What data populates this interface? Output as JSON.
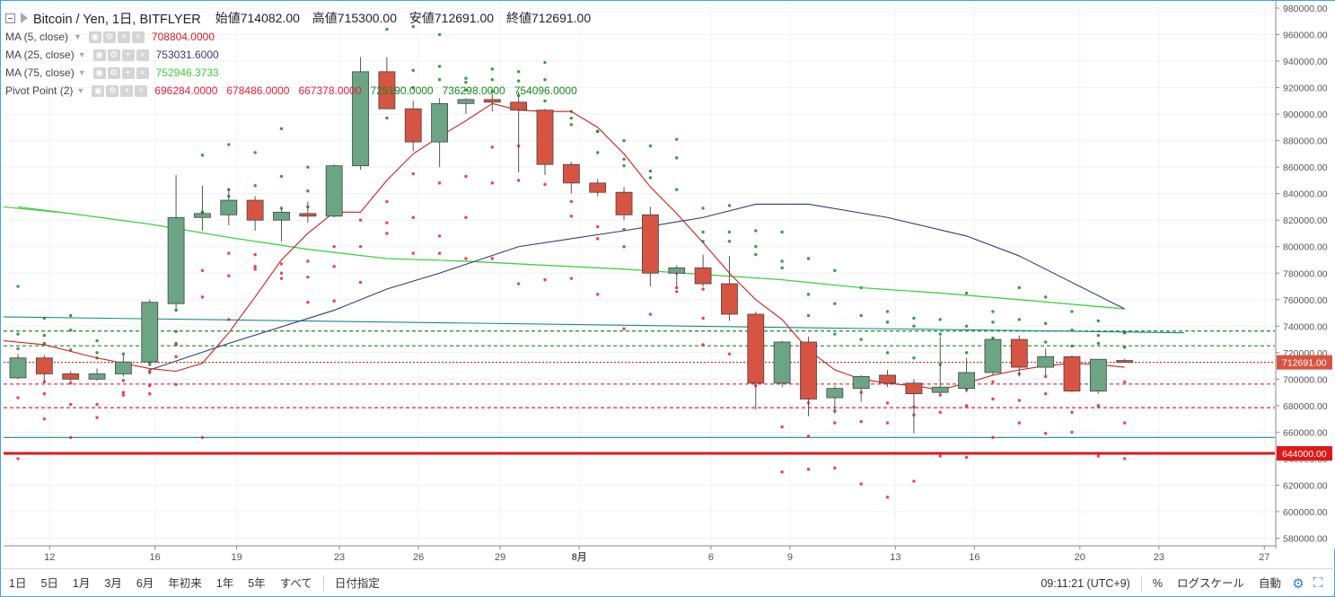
{
  "legend": {
    "symbol": "Bitcoin / Yen, 1日, BITFLYER",
    "open": "始値714082.00",
    "high": "高値715300.00",
    "low": "安値712691.00",
    "close": "終値712691.00",
    "indicators": [
      {
        "name": "MA (5, close)",
        "values": [
          "708804.0000"
        ],
        "colors": [
          "#cc1f1f"
        ]
      },
      {
        "name": "MA (25, close)",
        "values": [
          "753031.6000"
        ],
        "colors": [
          "#333a7a"
        ]
      },
      {
        "name": "MA (75, close)",
        "values": [
          "752946.3733"
        ],
        "colors": [
          "#36d03a"
        ]
      },
      {
        "name": "Pivot Point (2)",
        "values": [
          "696284.0000",
          "678486.0000",
          "667378.0000",
          "725190.0000",
          "736298.0000",
          "754096.0000"
        ],
        "colors": [
          "#e0213f",
          "#e0213f",
          "#e0213f",
          "#138c1c",
          "#138c1c",
          "#138c1c"
        ]
      }
    ]
  },
  "price_axis": {
    "ticks": [
      "980000.00",
      "960000.00",
      "940000.00",
      "920000.00",
      "900000.00",
      "880000.00",
      "860000.00",
      "840000.00",
      "820000.00",
      "800000.00",
      "780000.00",
      "760000.00",
      "740000.00",
      "720000.00",
      "700000.00",
      "680000.00",
      "660000.00",
      "640000.00",
      "620000.00",
      "600000.00",
      "580000.00"
    ],
    "last_price_label": "712691.00",
    "line_label": "644000.00"
  },
  "time_axis": {
    "labels": [
      "12",
      "16",
      "19",
      "23",
      "26",
      "29",
      "8月",
      "6",
      "9",
      "13",
      "16",
      "20",
      "23",
      "27"
    ]
  },
  "toolbar": {
    "ranges": [
      "1日",
      "5日",
      "1月",
      "3月",
      "6月",
      "年初来",
      "1年",
      "5年",
      "すべて"
    ],
    "date_button": "日付指定",
    "clock": "09:11:21 (UTC+9)",
    "percent": "%",
    "log_scale": "ログスケール",
    "auto": "自動"
  },
  "colors": {
    "up": "#6ba583",
    "down": "#d75442",
    "ma5": "#cc1f1f",
    "ma25": "#333a7a",
    "ma75": "#36d03a",
    "pivot_support": "#e0213f",
    "pivot_resist": "#138c1c",
    "trend": "#168a8a",
    "accent": "#3ba7e6"
  },
  "chart_data": {
    "type": "candlestick",
    "candles": [
      {
        "o": 701000,
        "h": 719000,
        "l": 700000,
        "c": 716000
      },
      {
        "o": 716000,
        "h": 718000,
        "l": 698000,
        "c": 704000
      },
      {
        "o": 704000,
        "h": 706000,
        "l": 698000,
        "c": 700000
      },
      {
        "o": 700000,
        "h": 708000,
        "l": 699000,
        "c": 704000
      },
      {
        "o": 704000,
        "h": 718000,
        "l": 702000,
        "c": 713000
      },
      {
        "o": 713000,
        "h": 760000,
        "l": 712000,
        "c": 758000
      },
      {
        "o": 757000,
        "h": 854000,
        "l": 752000,
        "c": 822000
      },
      {
        "o": 822000,
        "h": 846000,
        "l": 812000,
        "c": 825000
      },
      {
        "o": 824000,
        "h": 844000,
        "l": 816000,
        "c": 835000
      },
      {
        "o": 835000,
        "h": 838000,
        "l": 812000,
        "c": 820000
      },
      {
        "o": 820000,
        "h": 828000,
        "l": 804000,
        "c": 826000
      },
      {
        "o": 825000,
        "h": 834000,
        "l": 818000,
        "c": 823000
      },
      {
        "o": 823000,
        "h": 862000,
        "l": 822000,
        "c": 861000
      },
      {
        "o": 861000,
        "h": 943000,
        "l": 858000,
        "c": 932000
      },
      {
        "o": 932000,
        "h": 943000,
        "l": 904000,
        "c": 904000
      },
      {
        "o": 904000,
        "h": 910000,
        "l": 872000,
        "c": 879000
      },
      {
        "o": 879000,
        "h": 912000,
        "l": 860000,
        "c": 908000
      },
      {
        "o": 908000,
        "h": 912000,
        "l": 900000,
        "c": 911000
      },
      {
        "o": 911000,
        "h": 915000,
        "l": 902000,
        "c": 909000
      },
      {
        "o": 909000,
        "h": 917000,
        "l": 856000,
        "c": 903000
      },
      {
        "o": 903000,
        "h": 904000,
        "l": 854000,
        "c": 862000
      },
      {
        "o": 862000,
        "h": 864000,
        "l": 840000,
        "c": 848000
      },
      {
        "o": 848000,
        "h": 851000,
        "l": 838000,
        "c": 841000
      },
      {
        "o": 841000,
        "h": 845000,
        "l": 820000,
        "c": 824000
      },
      {
        "o": 824000,
        "h": 830000,
        "l": 770000,
        "c": 780000
      },
      {
        "o": 780000,
        "h": 786000,
        "l": 770000,
        "c": 784000
      },
      {
        "o": 784000,
        "h": 794000,
        "l": 770000,
        "c": 772000
      },
      {
        "o": 772000,
        "h": 793000,
        "l": 744000,
        "c": 749000
      },
      {
        "o": 749000,
        "h": 751000,
        "l": 677000,
        "c": 697000
      },
      {
        "o": 697000,
        "h": 729000,
        "l": 694000,
        "c": 728000
      },
      {
        "o": 728000,
        "h": 732000,
        "l": 672000,
        "c": 685000
      },
      {
        "o": 686000,
        "h": 695000,
        "l": 674000,
        "c": 693000
      },
      {
        "o": 693000,
        "h": 703000,
        "l": 683000,
        "c": 702000
      },
      {
        "o": 703000,
        "h": 707000,
        "l": 694000,
        "c": 697000
      },
      {
        "o": 697000,
        "h": 700000,
        "l": 659000,
        "c": 689000
      },
      {
        "o": 690000,
        "h": 732000,
        "l": 689000,
        "c": 694000
      },
      {
        "o": 693000,
        "h": 716000,
        "l": 690000,
        "c": 705000
      },
      {
        "o": 705000,
        "h": 731000,
        "l": 703000,
        "c": 730000
      },
      {
        "o": 730000,
        "h": 733000,
        "l": 702000,
        "c": 709000
      },
      {
        "o": 709000,
        "h": 723000,
        "l": 703000,
        "c": 717000
      },
      {
        "o": 717000,
        "h": 718000,
        "l": 690000,
        "c": 691000
      },
      {
        "o": 691000,
        "h": 715000,
        "l": 689000,
        "c": 715000
      },
      {
        "o": 714082,
        "h": 715300,
        "l": 712691,
        "c": 712691
      }
    ],
    "ma5": [
      729000,
      726000,
      721000,
      716000,
      712000,
      708000,
      706000,
      712000,
      735000,
      762000,
      790000,
      810000,
      826000,
      826000,
      850000,
      870000,
      883000,
      895000,
      908000,
      903000,
      902000,
      902000,
      890000,
      870000,
      845000,
      825000,
      803000,
      780000,
      760000,
      745000,
      722000,
      707000,
      700000,
      697000,
      695000,
      692000,
      697000,
      703000,
      707000,
      710000,
      712000,
      711000,
      709000
    ],
    "ma25_points": [
      [
        5,
        707000
      ],
      [
        8,
        727000
      ],
      [
        12,
        752000
      ],
      [
        14,
        768000
      ],
      [
        16,
        780000
      ],
      [
        19,
        800000
      ],
      [
        23,
        812000
      ],
      [
        26,
        822000
      ],
      [
        28,
        832000
      ],
      [
        30,
        832000
      ],
      [
        33,
        822000
      ],
      [
        36,
        808000
      ],
      [
        38,
        793000
      ],
      [
        42,
        753000
      ]
    ],
    "ma75_points": [
      [
        0,
        830000
      ],
      [
        2,
        825000
      ],
      [
        5,
        817000
      ],
      [
        8,
        807000
      ],
      [
        11,
        798000
      ],
      [
        14,
        791000
      ],
      [
        17,
        789000
      ],
      [
        20,
        786000
      ],
      [
        23,
        783000
      ],
      [
        26,
        779000
      ],
      [
        29,
        775000
      ],
      [
        32,
        769000
      ],
      [
        35,
        765000
      ],
      [
        38,
        760000
      ],
      [
        42,
        753000
      ]
    ],
    "pivot_dots": {
      "r3": [
        770000,
        746000,
        748000,
        729000,
        719000,
        713000,
        752000,
        869000,
        877000,
        871000,
        889000,
        860000,
        859000,
        910000,
        964000,
        966000,
        960000,
        927000,
        934000,
        932000,
        939000,
        892000,
        887000,
        880000,
        876000,
        881000,
        829000,
        831000,
        812000,
        811000,
        791000,
        782000,
        769000,
        751000,
        746000,
        745000,
        765000,
        751000,
        769000,
        762000,
        751000,
        744000,
        735000
      ],
      "r2": [
        734000,
        733000,
        737000,
        720000,
        712000,
        711000,
        736000,
        826000,
        843000,
        846000,
        853000,
        842000,
        847000,
        874000,
        924000,
        933000,
        936000,
        924000,
        926000,
        925000,
        926000,
        902000,
        887000,
        866000,
        857000,
        867000,
        811000,
        811000,
        800000,
        789000,
        764000,
        757000,
        748000,
        743000,
        740000,
        734000,
        740000,
        743000,
        745000,
        742000,
        737000,
        733000,
        735000
      ],
      "r1": [
        723000,
        727000,
        722000,
        716000,
        708000,
        706000,
        727000,
        826000,
        838000,
        833000,
        829000,
        830000,
        839000,
        862000,
        897000,
        920000,
        926000,
        918000,
        917000,
        914000,
        910000,
        897000,
        871000,
        861000,
        852000,
        843000,
        804000,
        804000,
        794000,
        784000,
        748000,
        734000,
        730000,
        720000,
        716000,
        711000,
        720000,
        731000,
        728000,
        728000,
        725000,
        727000,
        724000
      ],
      "s1": [
        703000,
        698000,
        697000,
        702000,
        699000,
        705000,
        726000,
        782000,
        795000,
        794000,
        787000,
        789000,
        800000,
        820000,
        834000,
        855000,
        848000,
        853000,
        875000,
        876000,
        870000,
        834000,
        815000,
        813000,
        798000,
        780000,
        768000,
        762000,
        734000,
        701000,
        682000,
        676000,
        690000,
        682000,
        679000,
        688000,
        692000,
        698000,
        704000,
        702000,
        692000,
        695000,
        698000
      ],
      "s2": [
        686000,
        689000,
        681000,
        681000,
        688000,
        689000,
        717000,
        762000,
        778000,
        783000,
        776000,
        777000,
        785000,
        800000,
        818000,
        822000,
        808000,
        822000,
        848000,
        850000,
        847000,
        823000,
        806000,
        800000,
        789000,
        769000,
        746000,
        754000,
        723000,
        664000,
        657000,
        667000,
        668000,
        667000,
        673000,
        675000,
        680000,
        685000,
        684000,
        689000,
        675000,
        680000,
        667000
      ],
      "s3": [
        640000,
        670000,
        656000,
        671000,
        690000,
        695000,
        696000,
        656000,
        745000,
        785000,
        780000,
        758000,
        759000,
        773000,
        810000,
        795000,
        795000,
        791000,
        791000,
        772000,
        775000,
        776000,
        764000,
        738000,
        749000,
        766000,
        726000,
        719000,
        695000,
        630000,
        632000,
        633000,
        621000,
        611000,
        623000,
        642000,
        641000,
        656000,
        667000,
        659000,
        660000,
        642000,
        640000
      ]
    },
    "horizontal_lines": [
      {
        "price": 644000,
        "color": "#e01818",
        "style": "solid",
        "label": "644000.00"
      },
      {
        "price": 736298,
        "color": "#138c1c",
        "style": "dashed"
      },
      {
        "price": 725190,
        "color": "#138c1c",
        "style": "dashed"
      },
      {
        "price": 696284,
        "color": "#e0213f",
        "style": "dashed"
      },
      {
        "price": 678486,
        "color": "#e0213f",
        "style": "dashed"
      },
      {
        "price": 712691,
        "color": "#c0392b",
        "style": "dotted"
      },
      {
        "price": 656000,
        "color": "#168a8a",
        "style": "solid"
      }
    ],
    "trend_line": {
      "from": [
        0,
        747000
      ],
      "to": [
        44,
        735000
      ]
    },
    "ylim": [
      570000,
      985000
    ]
  }
}
